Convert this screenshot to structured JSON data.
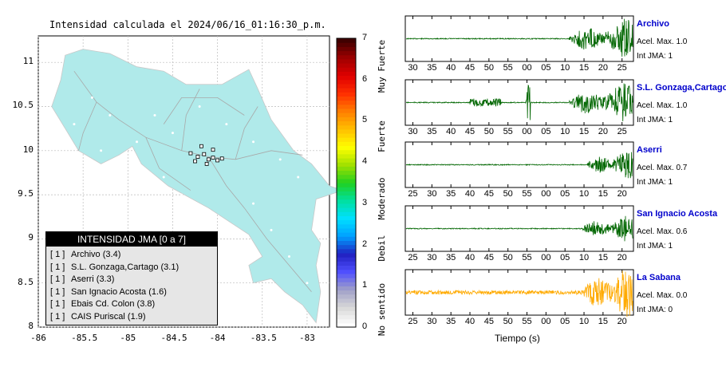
{
  "map": {
    "title": "Intensidad calculada el 2024/06/16_01:16:30_p.m.",
    "x_ticks": [
      "-86",
      "-85.5",
      "-85",
      "-84.5",
      "-84",
      "-83.5",
      "-83"
    ],
    "y_ticks": [
      "11",
      "10.5",
      "10",
      "9.5",
      "9",
      "8.5",
      "8"
    ],
    "xlim": [
      -86,
      -82.75
    ],
    "ylim": [
      8,
      11.3
    ],
    "land_color": "#b0eaea",
    "legend": {
      "title": "INTENSIDAD JMA [0 a 7]",
      "entries": [
        {
          "level": "[ 1 ]",
          "name": "Archivo (3.4)"
        },
        {
          "level": "[ 1 ]",
          "name": "S.L. Gonzaga,Cartago (3.1)"
        },
        {
          "level": "[ 1 ]",
          "name": "Aserri (3.3)"
        },
        {
          "level": "[ 1 ]",
          "name": "San Ignacio Acosta (1.6)"
        },
        {
          "level": "[ 1 ]",
          "name": "Ebais Cd. Colon (3.8)"
        },
        {
          "level": "[ 1 ]",
          "name": "CAIS Puriscal (1.9)"
        }
      ]
    }
  },
  "colorbar": {
    "ticks": [
      "0",
      "1",
      "2",
      "3",
      "4",
      "5",
      "6",
      "7"
    ],
    "labels": [
      "No sentido",
      "Debil",
      "Moderado",
      "Fuerte",
      "Muy Fuerte"
    ]
  },
  "waveforms": {
    "xlabel": "Tiempo (s)",
    "panels": [
      {
        "name": "Archivo",
        "acel": "Acel. Max. 1.0",
        "jma": "Int JMA: 1",
        "color": "#006600",
        "ticks": [
          "30",
          "35",
          "40",
          "45",
          "50",
          "55",
          "00",
          "05",
          "10",
          "15",
          "20",
          "25"
        ],
        "start": 28,
        "quiet_end": 0.72,
        "spike": null,
        "burst_amp": 1.0
      },
      {
        "name": "S.L. Gonzaga,Cartago",
        "acel": "Acel. Max. 1.0",
        "jma": "Int JMA: 1",
        "color": "#006600",
        "ticks": [
          "30",
          "35",
          "40",
          "45",
          "50",
          "55",
          "00",
          "05",
          "10",
          "15",
          "20",
          "25"
        ],
        "start": 28,
        "quiet_end": 0.72,
        "spike": 0.54,
        "burst_amp": 1.0
      },
      {
        "name": "Aserri",
        "acel": "Acel. Max. 0.7",
        "jma": "Int JMA: 1",
        "color": "#006600",
        "ticks": [
          "25",
          "30",
          "35",
          "40",
          "45",
          "50",
          "55",
          "00",
          "05",
          "10",
          "15",
          "20"
        ],
        "start": 23,
        "quiet_end": 0.8,
        "spike": null,
        "burst_amp": 0.7
      },
      {
        "name": "San Ignacio Acosta",
        "acel": "Acel. Max. 0.6",
        "jma": "Int JMA: 1",
        "color": "#006600",
        "ticks": [
          "25",
          "30",
          "35",
          "40",
          "45",
          "50",
          "55",
          "00",
          "05",
          "10",
          "15",
          "20"
        ],
        "start": 23,
        "quiet_end": 0.78,
        "spike": null,
        "burst_amp": 0.6
      },
      {
        "name": "La Sabana",
        "acel": "Acel. Max. 0.0",
        "jma": "Int JMA: 0",
        "color": "#ffaa00",
        "ticks": [
          "25",
          "30",
          "35",
          "40",
          "45",
          "50",
          "55",
          "00",
          "05",
          "10",
          "15",
          "20"
        ],
        "start": 23,
        "quiet_end": 0.78,
        "spike": null,
        "burst_amp": 0.8
      }
    ]
  },
  "chart_data": {
    "type": "line",
    "title": "Intensidad calculada el 2024/06/16_01:16:30_p.m.",
    "xlabel": "Tiempo (s)",
    "series": [
      {
        "name": "Archivo",
        "acel_max": 1.0,
        "int_jma": 1
      },
      {
        "name": "S.L. Gonzaga,Cartago",
        "acel_max": 1.0,
        "int_jma": 1
      },
      {
        "name": "Aserri",
        "acel_max": 0.7,
        "int_jma": 1
      },
      {
        "name": "San Ignacio Acosta",
        "acel_max": 0.6,
        "int_jma": 1
      },
      {
        "name": "La Sabana",
        "acel_max": 0.0,
        "int_jma": 0
      }
    ]
  }
}
